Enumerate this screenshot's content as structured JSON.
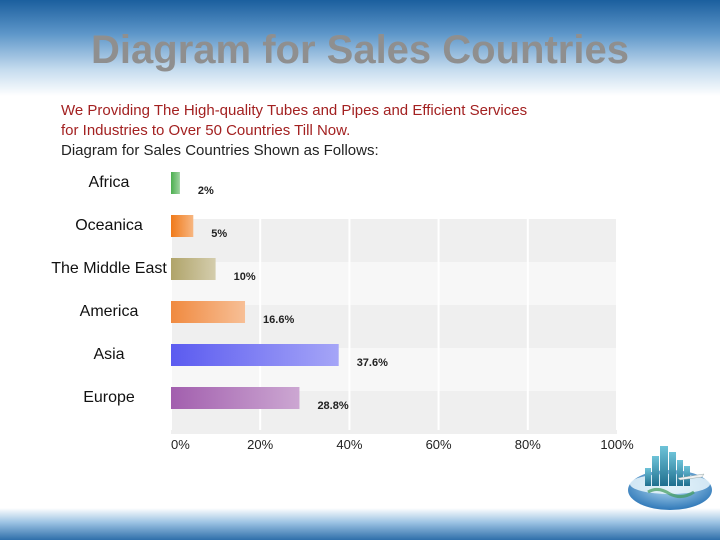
{
  "slide": {
    "title": "Diagram for Sales Countries",
    "intro_lines": [
      "We Providing The High-quality Tubes and Pipes and Efficient Services",
      "for Industries to Over 50 Countries Till Now.",
      "Diagram for Sales Countries Shown as Follows:"
    ]
  },
  "chart_data": {
    "type": "bar",
    "orientation": "horizontal",
    "categories": [
      "Africa",
      "Oceanica",
      "The Middle East",
      "America",
      "Asia",
      "Europe"
    ],
    "values": [
      2,
      5,
      10,
      16.6,
      37.6,
      28.8
    ],
    "value_labels": [
      "2%",
      "5%",
      "10%",
      "16.6%",
      "37.6%",
      "28.8%"
    ],
    "xlim": [
      0,
      100
    ],
    "x_ticks": [
      "0%",
      "20%",
      "40%",
      "60%",
      "80%",
      "100%"
    ],
    "grid": true,
    "colors": [
      "#4caf50",
      "#f07a1a",
      "#b0a46a",
      "#f08a40",
      "#5b5bf0",
      "#a25fae"
    ]
  }
}
